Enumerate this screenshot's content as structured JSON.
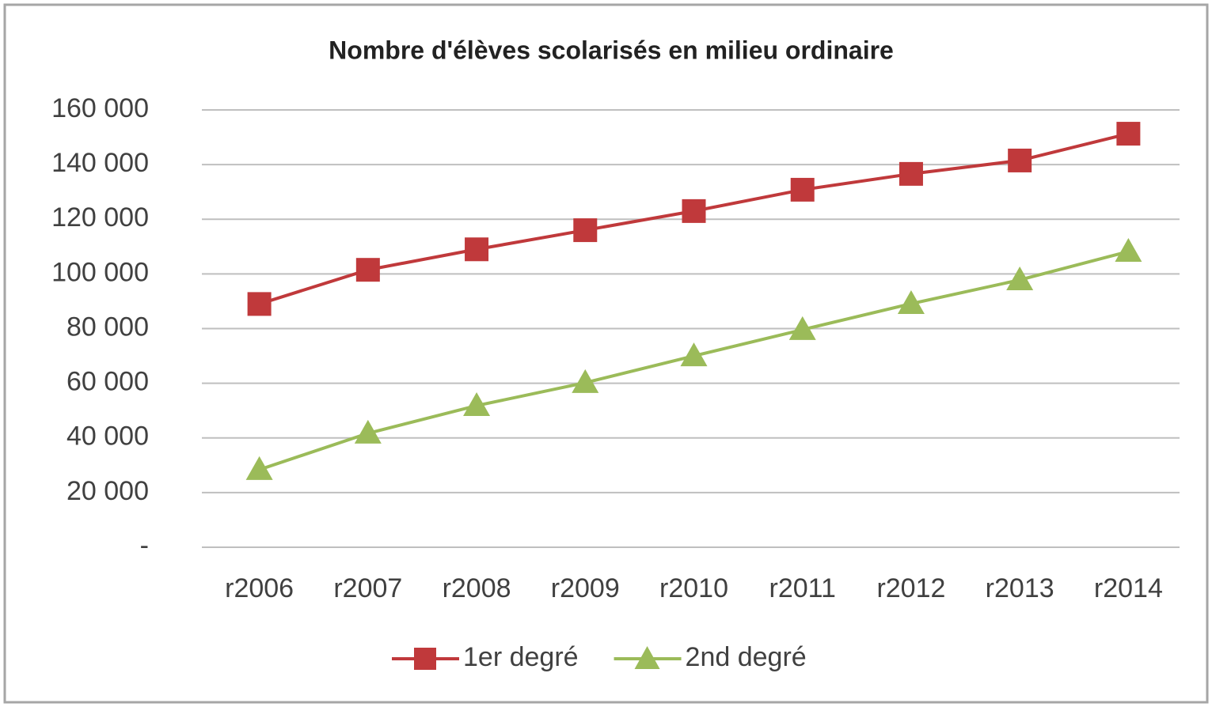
{
  "chart_data": {
    "type": "line",
    "title": "Nombre d'élèves scolarisés en milieu ordinaire",
    "categories": [
      "r2006",
      "r2007",
      "r2008",
      "r2009",
      "r2010",
      "r2011",
      "r2012",
      "r2013",
      "r2014"
    ],
    "series": [
      {
        "name": "1er degré",
        "color": "#c0393b",
        "marker": "square",
        "values": [
          89000,
          101500,
          109000,
          116000,
          123000,
          130800,
          136600,
          141500,
          151300
        ]
      },
      {
        "name": "2nd degré",
        "color": "#9bbb59",
        "marker": "triangle",
        "values": [
          28400,
          41700,
          51800,
          60200,
          70000,
          79600,
          89100,
          97800,
          108200
        ]
      }
    ],
    "ylim": [
      0,
      160000
    ],
    "yticks": [
      {
        "value": 0,
        "label": "-"
      },
      {
        "value": 20000,
        "label": "20 000"
      },
      {
        "value": 40000,
        "label": "40 000"
      },
      {
        "value": 60000,
        "label": "60 000"
      },
      {
        "value": 80000,
        "label": "80 000"
      },
      {
        "value": 100000,
        "label": "100 000"
      },
      {
        "value": 120000,
        "label": "120 000"
      },
      {
        "value": 140000,
        "label": "140 000"
      },
      {
        "value": 160000,
        "label": "160 000"
      }
    ],
    "grid": true,
    "legend": "bottom"
  }
}
